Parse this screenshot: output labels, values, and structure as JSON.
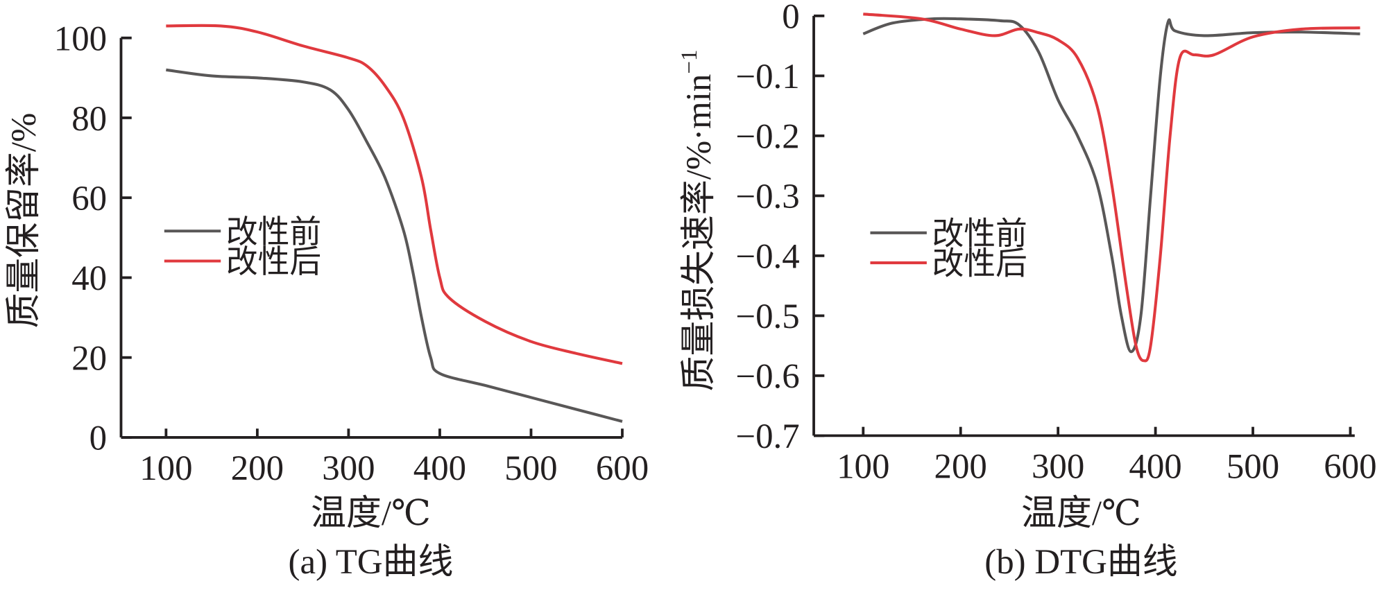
{
  "chart_data": [
    {
      "type": "line",
      "caption": "(a) TG曲线",
      "xlabel": "温度/℃",
      "ylabel": "质量保留率/%",
      "xlim": [
        50,
        600
      ],
      "ylim": [
        0,
        100
      ],
      "xticks": [
        100,
        200,
        300,
        400,
        500,
        600
      ],
      "yticks": [
        0,
        20,
        40,
        60,
        80,
        100
      ],
      "grid": false,
      "legend_position": "center-left",
      "series": [
        {
          "name": "改性前",
          "color": "#595757",
          "x": [
            100,
            150,
            200,
            250,
            280,
            300,
            320,
            340,
            360,
            370,
            380,
            390,
            400,
            450,
            500,
            550,
            600
          ],
          "y": [
            92,
            90.5,
            90,
            89,
            87,
            82,
            74,
            65,
            52,
            42,
            30,
            20,
            16,
            13,
            10,
            7,
            4
          ]
        },
        {
          "name": "改性后",
          "color": "#e0393e",
          "x": [
            100,
            160,
            200,
            250,
            300,
            320,
            340,
            360,
            380,
            390,
            400,
            410,
            450,
            500,
            550,
            600
          ],
          "y": [
            103,
            103,
            101.5,
            98,
            95,
            93,
            88,
            80,
            65,
            52,
            40,
            35,
            29,
            24,
            21,
            18.5
          ]
        }
      ]
    },
    {
      "type": "line",
      "caption": "(b) DTG曲线",
      "xlabel": "温度/℃",
      "ylabel": "质量损失速率/%·min",
      "ylabel_sup": "−1",
      "xlim": [
        50,
        600
      ],
      "ylim": [
        -0.7,
        0
      ],
      "xticks": [
        100,
        200,
        300,
        400,
        500,
        600
      ],
      "yticks": [
        0,
        -0.1,
        -0.2,
        -0.3,
        -0.4,
        -0.5,
        -0.6,
        -0.7
      ],
      "ytick_labels": [
        "0",
        "−0.1",
        "−0.2",
        "−0.3",
        "−0.4",
        "−0.5",
        "−0.6",
        "−0.7"
      ],
      "grid": false,
      "legend_position": "center-left",
      "series": [
        {
          "name": "改性前",
          "color": "#595757",
          "x": [
            100,
            130,
            170,
            200,
            240,
            260,
            280,
            300,
            320,
            340,
            355,
            365,
            375,
            385,
            395,
            405,
            413,
            420,
            450,
            500,
            550,
            610
          ],
          "y": [
            -0.03,
            -0.012,
            -0.005,
            -0.005,
            -0.008,
            -0.015,
            -0.06,
            -0.14,
            -0.2,
            -0.28,
            -0.4,
            -0.5,
            -0.56,
            -0.5,
            -0.3,
            -0.1,
            -0.01,
            -0.025,
            -0.033,
            -0.028,
            -0.027,
            -0.03
          ]
        },
        {
          "name": "改性后",
          "color": "#e0393e",
          "x": [
            100,
            160,
            200,
            235,
            260,
            280,
            300,
            320,
            340,
            355,
            370,
            380,
            388,
            395,
            405,
            415,
            425,
            440,
            460,
            500,
            550,
            610
          ],
          "y": [
            0.003,
            -0.005,
            -0.022,
            -0.033,
            -0.022,
            -0.028,
            -0.04,
            -0.07,
            -0.15,
            -0.28,
            -0.45,
            -0.55,
            -0.575,
            -0.55,
            -0.4,
            -0.2,
            -0.07,
            -0.065,
            -0.065,
            -0.035,
            -0.022,
            -0.02
          ]
        }
      ]
    }
  ]
}
